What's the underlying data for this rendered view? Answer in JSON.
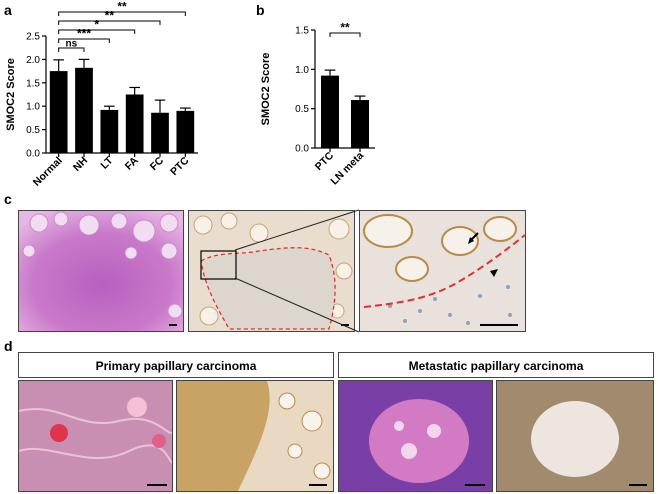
{
  "panel_labels": {
    "a": "a",
    "b": "b",
    "c": "c",
    "d": "d"
  },
  "colors": {
    "bar": "#000000",
    "dash": "#e03030",
    "he": "#d17ac8",
    "ihc": "#e9dccb"
  },
  "chart_data": [
    {
      "type": "bar",
      "ylabel": "SMOC2 Score",
      "ylim": [
        0,
        2.5
      ],
      "yticks": [
        "0.0",
        "0.5",
        "1.0",
        "1.5",
        "2.0",
        "2.5"
      ],
      "categories": [
        "Normal",
        "NH",
        "LT",
        "FA",
        "FC",
        "PTC"
      ],
      "values": [
        1.75,
        1.82,
        0.92,
        1.25,
        0.86,
        0.9
      ],
      "errors": [
        0.24,
        0.18,
        0.08,
        0.15,
        0.27,
        0.06
      ],
      "significance": [
        {
          "from": 0,
          "to": 1,
          "label": "ns"
        },
        {
          "from": 0,
          "to": 2,
          "label": "***"
        },
        {
          "from": 0,
          "to": 3,
          "label": "*"
        },
        {
          "from": 0,
          "to": 4,
          "label": "**"
        },
        {
          "from": 0,
          "to": 5,
          "label": "**"
        }
      ]
    },
    {
      "type": "bar",
      "ylabel": "SMOC2 Score",
      "ylim": [
        0,
        1.5
      ],
      "yticks": [
        "0.0",
        "0.5",
        "1.0",
        "1.5"
      ],
      "categories": [
        "PTC",
        "LN meta"
      ],
      "values": [
        0.92,
        0.61
      ],
      "errors": [
        0.07,
        0.05
      ],
      "significance": [
        {
          "from": 0,
          "to": 1,
          "label": "**"
        }
      ]
    }
  ],
  "panel_d": {
    "primary_title": "Primary papillary carcinoma",
    "metastatic_title": "Metastatic papillary carcinoma"
  }
}
